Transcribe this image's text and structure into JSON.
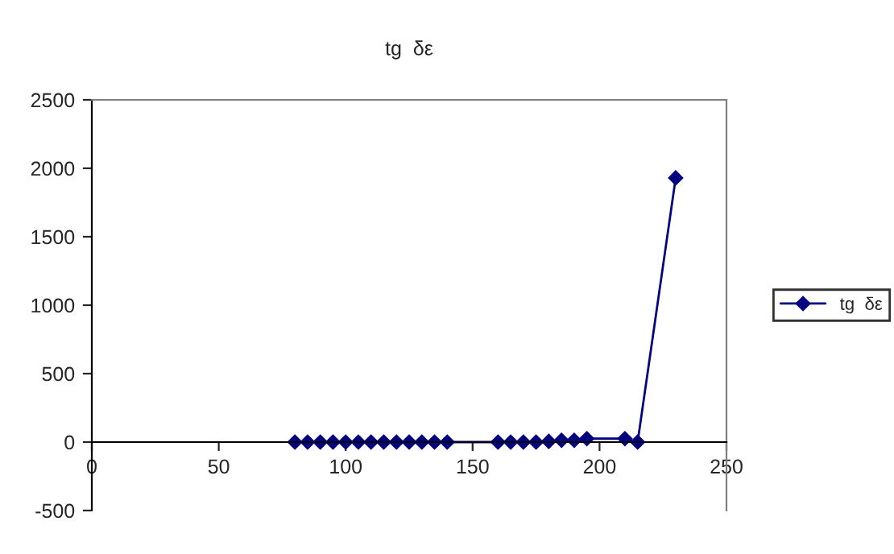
{
  "chart_data": {
    "type": "line",
    "title": "tg  δε",
    "x": [
      80,
      85,
      90,
      95,
      100,
      105,
      110,
      115,
      120,
      125,
      130,
      135,
      140,
      160,
      165,
      170,
      175,
      180,
      185,
      190,
      195,
      210,
      215,
      230
    ],
    "series": [
      {
        "name": "tg  δε",
        "color": "#000080",
        "values": [
          0,
          0,
          0,
          0,
          0,
          0,
          0,
          0,
          0,
          0,
          0,
          0,
          0,
          0,
          0,
          0,
          0,
          5,
          13,
          13,
          25,
          25,
          0,
          1930
        ]
      }
    ],
    "xlim": [
      0,
      250
    ],
    "xticks": [
      0,
      50,
      100,
      150,
      200,
      250
    ],
    "ylim": [
      -500,
      2500
    ],
    "yticks": [
      -500,
      0,
      500,
      1000,
      1500,
      2000,
      2500
    ],
    "grid": false,
    "legend": "right",
    "marker": "diamond",
    "line_style": "solid"
  }
}
